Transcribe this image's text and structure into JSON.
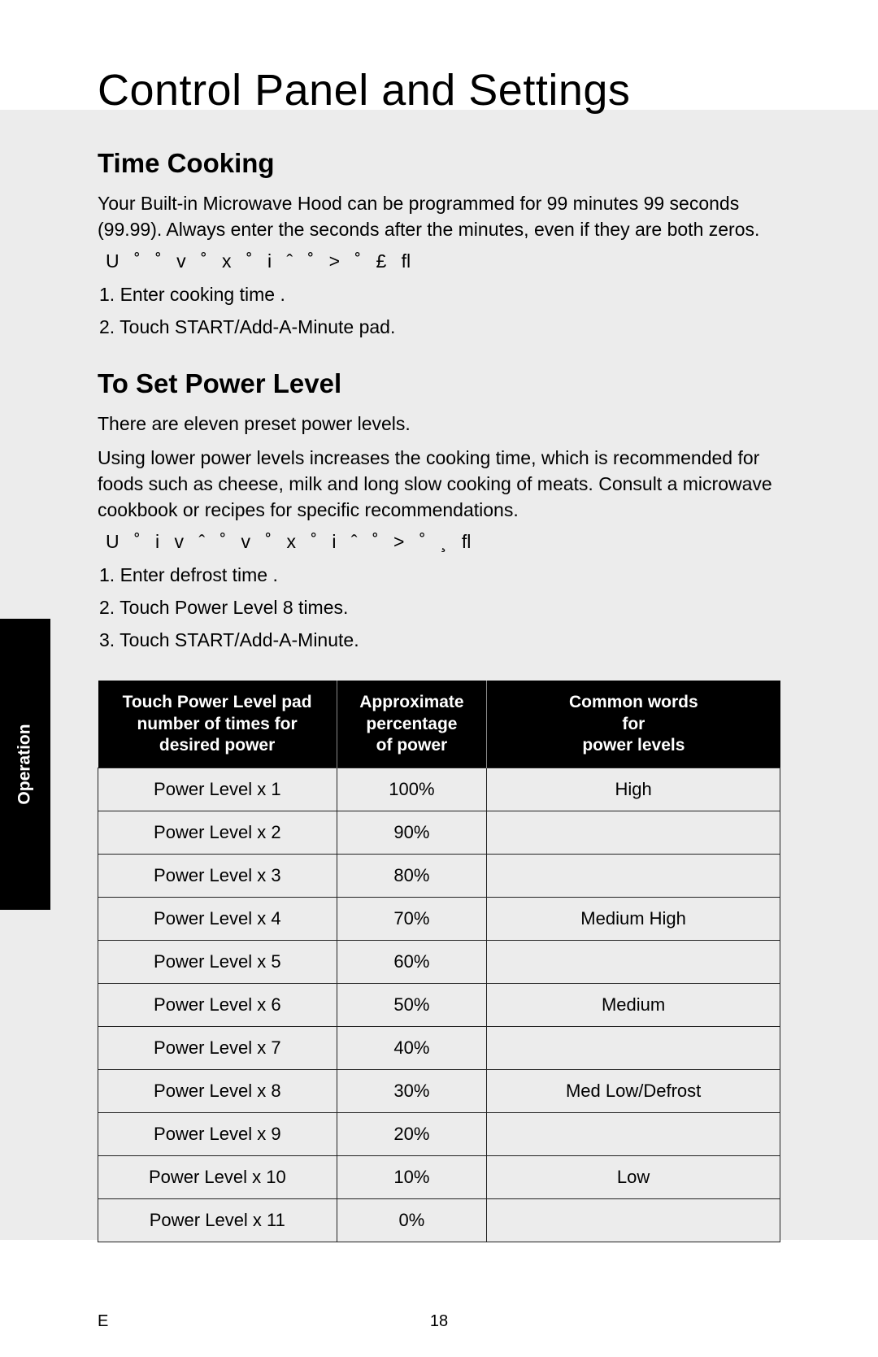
{
  "page": {
    "title": "Control Panel and Settings",
    "sidebar_label": "Operation",
    "footer_left": "E",
    "page_number": "18"
  },
  "time_cooking": {
    "heading": "Time Cooking",
    "para": "Your Built-in Microwave Hood can be programmed for 99 minutes 99 seconds (99.99). Always enter the seconds after the minutes, even if they are both zeros.",
    "garbled": "U ˚      ˚ v    ˚ x ˚       i ˆ ˚ >   ˚ £    ﬂ",
    "steps": [
      "1.  Enter cooking time            .",
      "2.  Touch START/Add-A-Minute pad."
    ]
  },
  "power_level": {
    "heading": "To Set Power Level",
    "para1": "There are eleven preset power levels.",
    "para2": "Using lower power levels increases the cooking time, which is recommended for foods such as cheese, milk and long slow cooking of meats. Consult a microwave cookbook or recipes for specific recommendations.",
    "garbled": "U ˚ i v    ˆ  ˚ v    ˚ x ˚       i ˆ ˚ >   ˚ ¸  ﬂ",
    "steps": [
      "1. Enter defrost time   .",
      "2. Touch Power Level 8 times.",
      "3. Touch START/Add-A-Minute."
    ]
  },
  "table": {
    "headers": {
      "col1_l1": "Touch Power Level pad",
      "col1_l2": "number of times for",
      "col1_l3": "desired power",
      "col2_l1": "Approximate",
      "col2_l2": "percentage",
      "col2_l3": "of power",
      "col3_l1": "Common words",
      "col3_l2": "for",
      "col3_l3": "power levels"
    },
    "rows": [
      {
        "level": "Power Level x 1",
        "pct": "100%",
        "word": "High"
      },
      {
        "level": "Power Level x 2",
        "pct": "90%",
        "word": ""
      },
      {
        "level": "Power Level x 3",
        "pct": "80%",
        "word": ""
      },
      {
        "level": "Power Level x 4",
        "pct": "70%",
        "word": "Medium High"
      },
      {
        "level": "Power Level x 5",
        "pct": "60%",
        "word": ""
      },
      {
        "level": "Power Level x 6",
        "pct": "50%",
        "word": "Medium"
      },
      {
        "level": "Power Level x 7",
        "pct": "40%",
        "word": ""
      },
      {
        "level": "Power Level x 8",
        "pct": "30%",
        "word": "Med Low/Defrost"
      },
      {
        "level": "Power Level x 9",
        "pct": "20%",
        "word": ""
      },
      {
        "level": "Power Level x 10",
        "pct": "10%",
        "word": "Low"
      },
      {
        "level": "Power Level x 11",
        "pct": "0%",
        "word": ""
      }
    ]
  }
}
